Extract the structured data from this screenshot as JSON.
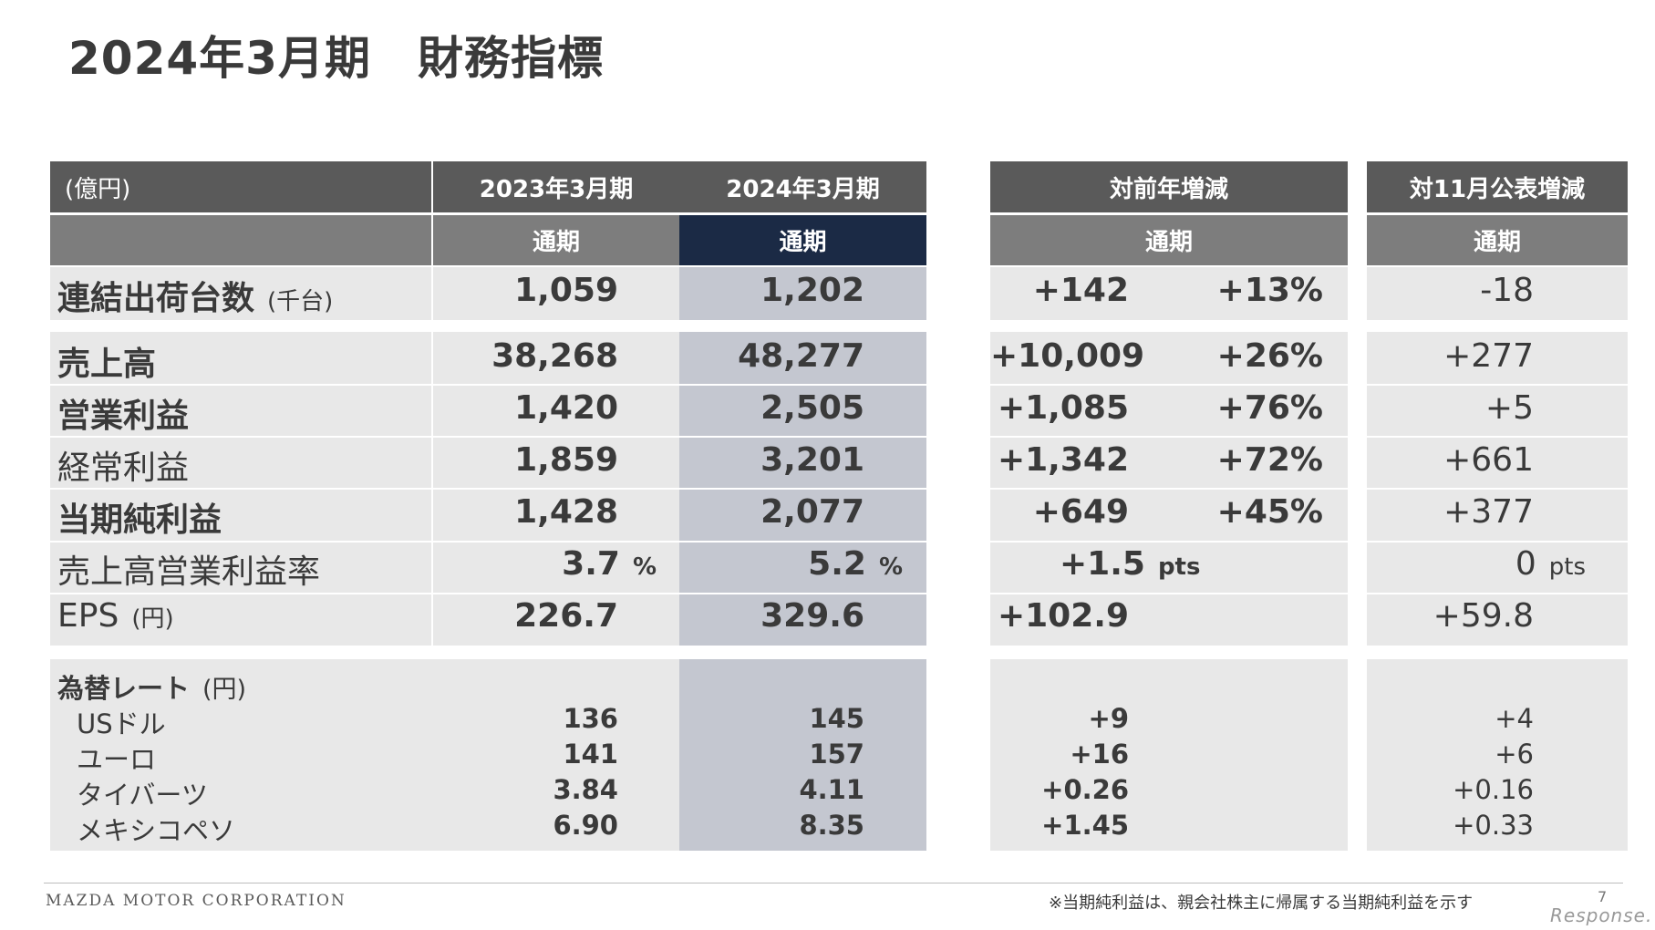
{
  "title": "2024年3月期　財務指標",
  "headers": {
    "unit": "(億円)",
    "fy2023": "2023年3月期",
    "fy2024": "2024年3月期",
    "yoy": "対前年増減",
    "vs_nov": "対11月公表増減",
    "full_year": "通期"
  },
  "rows": {
    "shipments": {
      "label": "連結出荷台数",
      "unit": "(千台)",
      "fy2023": "1,059",
      "fy2024": "1,202",
      "yoy_abs": "+142",
      "yoy_pct": "+13%",
      "vs_nov": "-18"
    },
    "revenue": {
      "label": "売上高",
      "fy2023": "38,268",
      "fy2024": "48,277",
      "yoy_abs": "+10,009",
      "yoy_pct": "+26%",
      "vs_nov": "+277"
    },
    "operating": {
      "label": "営業利益",
      "fy2023": "1,420",
      "fy2024": "2,505",
      "yoy_abs": "+1,085",
      "yoy_pct": "+76%",
      "vs_nov": "+5"
    },
    "ordinary": {
      "label": "経常利益",
      "fy2023": "1,859",
      "fy2024": "3,201",
      "yoy_abs": "+1,342",
      "yoy_pct": "+72%",
      "vs_nov": "+661"
    },
    "net": {
      "label": "当期純利益",
      "fy2023": "1,428",
      "fy2024": "2,077",
      "yoy_abs": "+649",
      "yoy_pct": "+45%",
      "vs_nov": "+377"
    },
    "margin": {
      "label": "売上高営業利益率",
      "fy2023": "3.7",
      "fy2024": "5.2",
      "pct_unit": "%",
      "yoy_abs": "+1.5",
      "vs_nov": "0",
      "pts_unit": "pts"
    },
    "eps": {
      "label": "EPS",
      "unit": "(円)",
      "fy2023": "226.7",
      "fy2024": "329.6",
      "yoy_abs": "+102.9",
      "vs_nov": "+59.8"
    }
  },
  "fx": {
    "label": "為替レート",
    "unit": "(円)",
    "items": [
      {
        "label": "USドル",
        "fy2023": "136",
        "fy2024": "145",
        "yoy": "+9",
        "vs_nov": "+4"
      },
      {
        "label": "ユーロ",
        "fy2023": "141",
        "fy2024": "157",
        "yoy": "+16",
        "vs_nov": "+6"
      },
      {
        "label": "タイバーツ",
        "fy2023": "3.84",
        "fy2024": "4.11",
        "yoy": "+0.26",
        "vs_nov": "+0.16"
      },
      {
        "label": "メキシコペソ",
        "fy2023": "6.90",
        "fy2024": "8.35",
        "yoy": "+1.45",
        "vs_nov": "+0.33"
      }
    ]
  },
  "footer": {
    "company": "MAZDA MOTOR CORPORATION",
    "note": "※当期純利益は、親会社株主に帰属する当期純利益を示す",
    "page": "7",
    "brand": "Response."
  },
  "colors": {
    "header": "#5a5a5a",
    "subheader": "#7d7d7d",
    "highlight_header": "#1b2a45",
    "cell": "#e8e8e8",
    "highlight_cell": "#c4c7d0"
  }
}
